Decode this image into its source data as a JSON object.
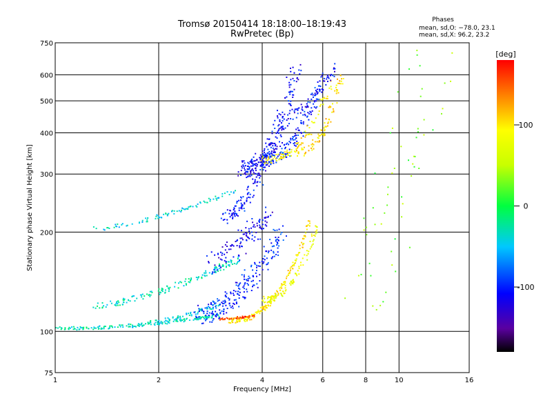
{
  "chart_data": {
    "type": "scatter",
    "title": "Tromsø 20150414 18:18:00–18:19:43",
    "subtitle": "RwPretec (Bp)",
    "xlabel": "Frequency [MHz]",
    "ylabel": "Stationary phase Virtual Height [km]",
    "x_scale": "log",
    "y_scale": "log",
    "xlim": [
      1,
      16
    ],
    "ylim": [
      75,
      750
    ],
    "x_ticks": [
      1,
      2,
      4,
      6,
      8,
      10,
      16
    ],
    "y_ticks": [
      75,
      100,
      200,
      300,
      400,
      500,
      600,
      750
    ],
    "grid": true,
    "stats": {
      "heading": "Phases",
      "line_o": "mean, sd,O: −78.0, 23.1",
      "line_x": "mean, sd,X:  96.2, 23.2"
    },
    "colorbar": {
      "label": "[deg]",
      "ticks": [
        100,
        0,
        -100
      ],
      "range": [
        -180,
        180
      ],
      "colormap": "rainbow"
    },
    "traces": [
      {
        "f1": 1.0,
        "f2": 3.0,
        "h1": 102,
        "h2": 112,
        "curve": 2.0,
        "phase": -30,
        "n": 170,
        "spread": 0.015
      },
      {
        "f1": 1.3,
        "f2": 3.4,
        "h1": 120,
        "h2": 165,
        "curve": 1.5,
        "phase": -30,
        "n": 150,
        "spread": 0.03
      },
      {
        "f1": 1.3,
        "f2": 3.4,
        "h1": 205,
        "h2": 270,
        "curve": 1.5,
        "phase": -40,
        "n": 90,
        "spread": 0.02
      },
      {
        "f1": 1.6,
        "f2": 3.0,
        "h1": 104,
        "h2": 120,
        "curve": 1.5,
        "phase": -40,
        "n": 80,
        "spread": 0.02
      },
      {
        "f1": 2.6,
        "f2": 4.6,
        "h1": 112,
        "h2": 200,
        "curve": 1.8,
        "phase": -100,
        "n": 230,
        "spread": 0.09
      },
      {
        "f1": 2.8,
        "f2": 4.2,
        "h1": 160,
        "h2": 230,
        "curve": 1.5,
        "phase": -115,
        "n": 120,
        "spread": 0.1
      },
      {
        "f1": 3.2,
        "f2": 5.5,
        "h1": 108,
        "h2": 215,
        "curve": 2.5,
        "phase": 100,
        "n": 200,
        "spread": 0.025
      },
      {
        "f1": 4.0,
        "f2": 5.8,
        "h1": 125,
        "h2": 215,
        "curve": 2.5,
        "phase": 80,
        "n": 90,
        "spread": 0.03
      },
      {
        "f1": 3.0,
        "f2": 3.8,
        "h1": 109,
        "h2": 111,
        "curve": 1.0,
        "phase": 160,
        "n": 40,
        "spread": 0.01
      },
      {
        "f1": 3.1,
        "f2": 4.0,
        "h1": 220,
        "h2": 300,
        "curve": 1.5,
        "phase": -105,
        "n": 90,
        "spread": 0.06
      },
      {
        "f1": 3.5,
        "f2": 5.0,
        "h1": 310,
        "h2": 620,
        "curve": 2.5,
        "phase": -110,
        "n": 260,
        "spread": 0.08
      },
      {
        "f1": 4.0,
        "f2": 6.0,
        "h1": 330,
        "h2": 600,
        "curve": 2.2,
        "phase": -100,
        "n": 160,
        "spread": 0.06
      },
      {
        "f1": 4.0,
        "f2": 6.3,
        "h1": 330,
        "h2": 560,
        "curve": 2.5,
        "phase": 100,
        "n": 90,
        "spread": 0.04
      },
      {
        "f1": 5.0,
        "f2": 6.8,
        "h1": 350,
        "h2": 600,
        "curve": 2.5,
        "phase": 110,
        "n": 90,
        "spread": 0.04
      },
      {
        "f1": 4.8,
        "f2": 6.6,
        "h1": 450,
        "h2": 650,
        "curve": 1.5,
        "phase": -110,
        "n": 60,
        "spread": 0.05
      },
      {
        "f1": 7.5,
        "f2": 12.5,
        "h1": 100,
        "h2": 660,
        "curve": 1.0,
        "phase": 30,
        "n": 60,
        "spread": 0.3
      }
    ]
  }
}
